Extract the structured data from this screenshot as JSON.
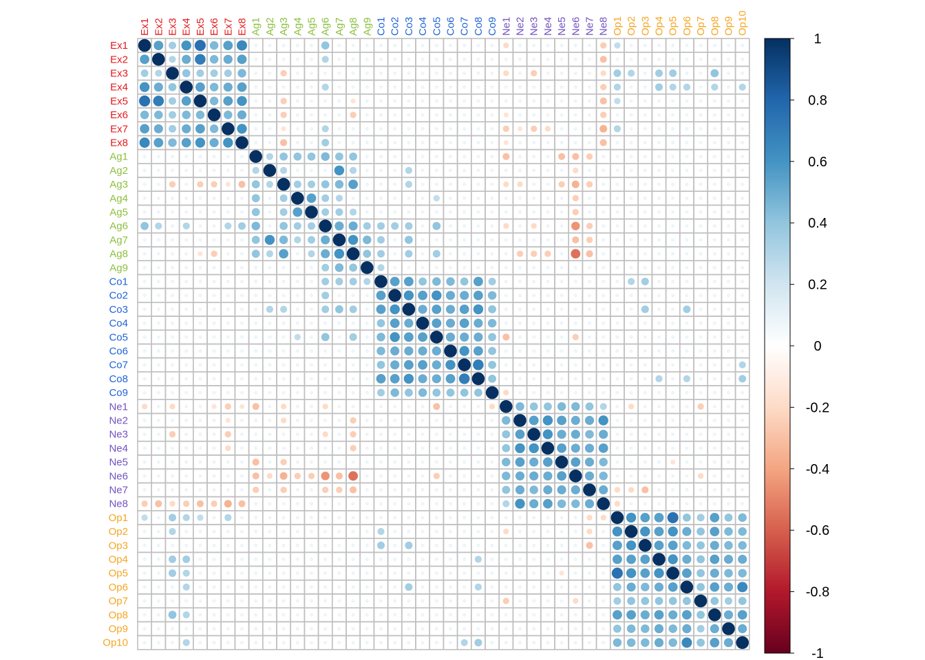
{
  "chart_data": {
    "type": "heatmap",
    "subtype": "correlation-matrix-circles",
    "variables": [
      "Ex1",
      "Ex2",
      "Ex3",
      "Ex4",
      "Ex5",
      "Ex6",
      "Ex7",
      "Ex8",
      "Ag1",
      "Ag2",
      "Ag3",
      "Ag4",
      "Ag5",
      "Ag6",
      "Ag7",
      "Ag8",
      "Ag9",
      "Co1",
      "Co2",
      "Co3",
      "Co4",
      "Co5",
      "Co6",
      "Co7",
      "Co8",
      "Co9",
      "Ne1",
      "Ne2",
      "Ne3",
      "Ne4",
      "Ne5",
      "Ne6",
      "Ne7",
      "Ne8",
      "Op1",
      "Op2",
      "Op3",
      "Op4",
      "Op5",
      "Op6",
      "Op7",
      "Op8",
      "Op9",
      "Op10"
    ],
    "groups": [
      {
        "prefix": "Ex",
        "color": "#e31a1c"
      },
      {
        "prefix": "Ag",
        "color": "#8cbf3f"
      },
      {
        "prefix": "Co",
        "color": "#1f63d6"
      },
      {
        "prefix": "Ne",
        "color": "#7352c2"
      },
      {
        "prefix": "Op",
        "color": "#f5a623"
      }
    ],
    "colorbar": {
      "range": [
        -1,
        1
      ],
      "ticks": [
        "1",
        "0.8",
        "0.6",
        "0.4",
        "0.2",
        "0",
        "-0.2",
        "-0.4",
        "-0.6",
        "-0.8",
        "-1"
      ],
      "colors": [
        "#67001f",
        "#b2182b",
        "#d6604d",
        "#f4a582",
        "#fddbc7",
        "#ffffff",
        "#d1e5f0",
        "#92c5de",
        "#4393c3",
        "#2166ac",
        "#053061"
      ]
    },
    "grid": true,
    "legend_position": "right",
    "correlations": {
      "Ex1-Ex2": 0.55,
      "Ex1-Ex3": 0.35,
      "Ex1-Ex4": 0.6,
      "Ex1-Ex5": 0.75,
      "Ex1-Ex6": 0.45,
      "Ex1-Ex7": 0.55,
      "Ex1-Ex8": 0.65,
      "Ex2-Ex3": 0.3,
      "Ex2-Ex4": 0.5,
      "Ex2-Ex5": 0.7,
      "Ex2-Ex6": 0.45,
      "Ex2-Ex7": 0.5,
      "Ex2-Ex8": 0.55,
      "Ex3-Ex4": 0.4,
      "Ex3-Ex5": 0.35,
      "Ex3-Ex6": 0.35,
      "Ex3-Ex7": 0.35,
      "Ex3-Ex8": 0.45,
      "Ex4-Ex5": 0.55,
      "Ex4-Ex6": 0.45,
      "Ex4-Ex7": 0.5,
      "Ex4-Ex8": 0.55,
      "Ex5-Ex6": 0.45,
      "Ex5-Ex7": 0.55,
      "Ex5-Ex8": 0.6,
      "Ex6-Ex7": 0.45,
      "Ex6-Ex8": 0.5,
      "Ex7-Ex8": 0.6,
      "Ex1-Ag6": 0.4,
      "Ex2-Ag6": 0.3,
      "Ex4-Ag6": 0.3,
      "Ex7-Ag6": 0.3,
      "Ex8-Ag6": 0.35,
      "Ex3-Ag3": -0.25,
      "Ex5-Ag3": -0.25,
      "Ex6-Ag3": -0.25,
      "Ex7-Ag3": -0.15,
      "Ex8-Ag3": -0.3,
      "Ex6-Ag8": -0.25,
      "Ex5-Ag8": -0.15,
      "Ex1-Ne1": -0.2,
      "Ex3-Ne1": -0.2,
      "Ex7-Ne1": -0.25,
      "Ex6-Ne1": -0.15,
      "Ex8-Ne1": -0.15,
      "Ex3-Ne3": -0.25,
      "Ex7-Ne3": -0.25,
      "Ex7-Ne4": -0.2,
      "Ex7-Ne2": -0.15,
      "Ex1-Ne8": -0.25,
      "Ex2-Ne8": -0.3,
      "Ex3-Ne8": -0.2,
      "Ex4-Ne8": -0.25,
      "Ex5-Ne8": -0.3,
      "Ex6-Ne8": -0.25,
      "Ex7-Ne8": -0.35,
      "Ex8-Ne8": -0.3,
      "Ex1-Op1": 0.25,
      "Ex3-Op1": 0.35,
      "Ex4-Op1": 0.3,
      "Ex5-Op1": 0.25,
      "Ex7-Op1": 0.3,
      "Ex3-Op2": 0.3,
      "Ex3-Op4": 0.35,
      "Ex4-Op4": 0.35,
      "Ex3-Op5": 0.35,
      "Ex4-Op5": 0.3,
      "Ex3-Op8": 0.4,
      "Ex4-Op8": 0.3,
      "Ex4-Op6": 0.3,
      "Ex4-Op10": 0.3,
      "Ag1-Ag2": 0.3,
      "Ag1-Ag3": 0.4,
      "Ag1-Ag4": 0.4,
      "Ag1-Ag5": 0.4,
      "Ag1-Ag6": 0.45,
      "Ag1-Ag7": 0.4,
      "Ag1-Ag8": 0.4,
      "Ag2-Ag7": 0.6,
      "Ag2-Ag3": 0.3,
      "Ag2-Ag8": 0.3,
      "Ag3-Ag4": 0.35,
      "Ag3-Ag5": 0.35,
      "Ag3-Ag6": 0.4,
      "Ag3-Ag7": 0.45,
      "Ag3-Ag8": 0.55,
      "Ag4-Ag5": 0.55,
      "Ag4-Ag6": 0.35,
      "Ag4-Ag7": 0.3,
      "Ag5-Ag6": 0.35,
      "Ag5-Ag7": 0.35,
      "Ag5-Ag8": 0.3,
      "Ag6-Ag7": 0.5,
      "Ag6-Ag8": 0.5,
      "Ag6-Ag9": 0.35,
      "Ag7-Ag8": 0.6,
      "Ag7-Ag9": 0.45,
      "Ag8-Ag9": 0.4,
      "Ag1-Ne6": -0.3,
      "Ag3-Ne6": -0.35,
      "Ag6-Ne6": -0.45,
      "Ag8-Ne6": -0.55,
      "Ag7-Ne6": -0.3,
      "Ag4-Ne6": -0.25,
      "Ag5-Ne6": -0.25,
      "Ag2-Ne6": -0.2,
      "Ag1-Ne1": -0.3,
      "Ag3-Ne1": -0.2,
      "Ag6-Ne1": -0.2,
      "Ag1-Ne7": -0.25,
      "Ag3-Ne7": -0.25,
      "Ag8-Ne7": -0.3,
      "Ag6-Ne7": -0.25,
      "Ag7-Ne7": -0.25,
      "Ag8-Ne2": -0.25,
      "Ag8-Ne3": -0.25,
      "Ag8-Ne4": -0.25,
      "Ag3-Ne2": -0.2,
      "Ag3-Ne5": -0.25,
      "Ag1-Ne5": -0.3,
      "Ag6-Ne3": -0.2,
      "Ag6-Co1": 0.35,
      "Ag6-Co2": 0.35,
      "Ag6-Co3": 0.35,
      "Ag6-Co5": 0.4,
      "Ag7-Co1": 0.35,
      "Ag7-Co3": 0.4,
      "Ag8-Co1": 0.35,
      "Ag8-Co3": 0.35,
      "Ag8-Co5": 0.35,
      "Ag9-Co1": 0.3,
      "Ag2-Co3": 0.3,
      "Ag3-Co3": 0.3,
      "Ag4-Co5": 0.25,
      "Co1-Co2": 0.55,
      "Co1-Co3": 0.55,
      "Co1-Co4": 0.4,
      "Co1-Co5": 0.45,
      "Co1-Co6": 0.45,
      "Co1-Co7": 0.4,
      "Co1-Co8": 0.55,
      "Co1-Co9": 0.35,
      "Co2-Co3": 0.6,
      "Co2-Co4": 0.55,
      "Co2-Co5": 0.6,
      "Co2-Co6": 0.5,
      "Co2-Co7": 0.5,
      "Co2-Co8": 0.55,
      "Co2-Co9": 0.45,
      "Co3-Co4": 0.5,
      "Co3-Co5": 0.55,
      "Co3-Co6": 0.5,
      "Co3-Co7": 0.55,
      "Co3-Co8": 0.6,
      "Co3-Co9": 0.4,
      "Co4-Co5": 0.55,
      "Co4-Co6": 0.5,
      "Co4-Co7": 0.55,
      "Co4-Co8": 0.5,
      "Co4-Co9": 0.45,
      "Co5-Co6": 0.5,
      "Co5-Co7": 0.5,
      "Co5-Co8": 0.5,
      "Co5-Co9": 0.4,
      "Co6-Co7": 0.6,
      "Co6-Co8": 0.55,
      "Co6-Co9": 0.4,
      "Co7-Co8": 0.7,
      "Co7-Co9": 0.4,
      "Co8-Co9": 0.4,
      "Co5-Ne1": -0.3,
      "Co5-Ne6": -0.25,
      "Co9-Ne1": -0.2,
      "Co1-Op3": 0.35,
      "Co1-Op2": 0.3,
      "Co3-Op3": 0.35,
      "Co3-Op6": 0.35,
      "Co8-Op10": 0.35,
      "Co8-Op6": 0.3,
      "Co8-Op4": 0.3,
      "Co7-Op10": 0.3,
      "Ne1-Ne2": 0.45,
      "Ne1-Ne3": 0.4,
      "Ne1-Ne4": 0.4,
      "Ne1-Ne5": 0.45,
      "Ne1-Ne6": 0.45,
      "Ne1-Ne7": 0.4,
      "Ne1-Ne8": 0.3,
      "Ne2-Ne3": 0.55,
      "Ne2-Ne4": 0.6,
      "Ne2-Ne5": 0.55,
      "Ne2-Ne6": 0.5,
      "Ne2-Ne7": 0.5,
      "Ne2-Ne8": 0.6,
      "Ne3-Ne4": 0.6,
      "Ne3-Ne5": 0.5,
      "Ne3-Ne6": 0.5,
      "Ne3-Ne7": 0.45,
      "Ne3-Ne8": 0.5,
      "Ne4-Ne5": 0.55,
      "Ne4-Ne6": 0.5,
      "Ne4-Ne7": 0.5,
      "Ne4-Ne8": 0.55,
      "Ne5-Ne6": 0.55,
      "Ne5-Ne7": 0.5,
      "Ne5-Ne8": 0.45,
      "Ne6-Ne7": 0.5,
      "Ne6-Ne8": 0.45,
      "Ne7-Ne8": 0.5,
      "Ne7-Op3": -0.3,
      "Ne7-Op1": -0.2,
      "Ne7-Op2": -0.2,
      "Ne8-Op1": -0.2,
      "Ne1-Op7": -0.25,
      "Ne6-Op7": -0.2,
      "Ne1-Op2": -0.2,
      "Ne5-Op5": -0.15,
      "Op1-Op2": 0.6,
      "Op1-Op3": 0.55,
      "Op1-Op4": 0.55,
      "Op1-Op5": 0.75,
      "Op1-Op6": 0.4,
      "Op1-Op7": 0.35,
      "Op1-Op8": 0.55,
      "Op1-Op9": 0.4,
      "Op1-Op10": 0.45,
      "Op2-Op3": 0.6,
      "Op2-Op4": 0.55,
      "Op2-Op5": 0.6,
      "Op2-Op6": 0.5,
      "Op2-Op7": 0.4,
      "Op2-Op8": 0.55,
      "Op2-Op9": 0.45,
      "Op2-Op10": 0.45,
      "Op3-Op4": 0.55,
      "Op3-Op5": 0.55,
      "Op3-Op6": 0.45,
      "Op3-Op7": 0.4,
      "Op3-Op8": 0.5,
      "Op3-Op9": 0.45,
      "Op3-Op10": 0.45,
      "Op4-Op5": 0.6,
      "Op4-Op6": 0.5,
      "Op4-Op7": 0.4,
      "Op4-Op8": 0.55,
      "Op4-Op9": 0.5,
      "Op4-Op10": 0.5,
      "Op5-Op6": 0.55,
      "Op5-Op7": 0.4,
      "Op5-Op8": 0.5,
      "Op5-Op9": 0.45,
      "Op5-Op10": 0.45,
      "Op6-Op7": 0.4,
      "Op6-Op8": 0.55,
      "Op6-Op9": 0.5,
      "Op6-Op10": 0.65,
      "Op7-Op8": 0.4,
      "Op7-Op9": 0.35,
      "Op7-Op10": 0.4,
      "Op8-Op9": 0.5,
      "Op8-Op10": 0.55,
      "Op9-Op10": 0.5
    },
    "default_weak": 0.08
  }
}
